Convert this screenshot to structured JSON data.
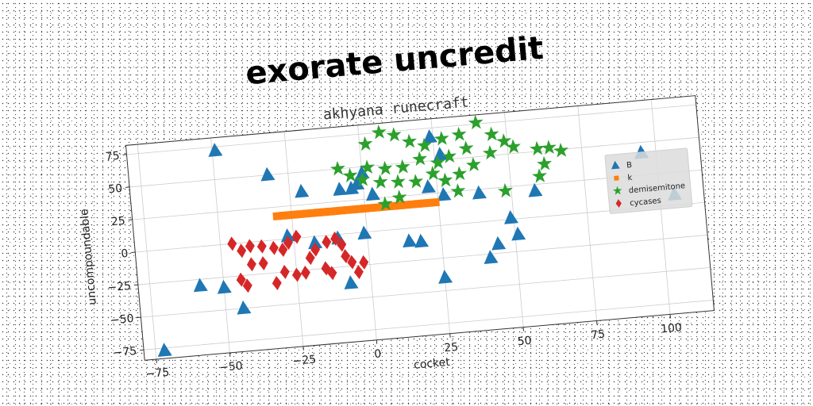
{
  "chart_data": {
    "type": "scatter",
    "title": "exorate uncredit",
    "subtitle": "akhyana runecraft",
    "xlabel": "cocket",
    "ylabel": "uncompoundable",
    "xlim": [
      -79,
      115
    ],
    "ylim": [
      -83,
      82
    ],
    "x_ticks": [
      -75,
      -50,
      -25,
      0,
      25,
      50,
      75,
      100
    ],
    "y_ticks": [
      -75,
      -50,
      -25,
      0,
      25,
      50,
      75
    ],
    "grid": true,
    "legend_position": "right",
    "series": [
      {
        "name": "B",
        "marker": "triangle",
        "color": "#1f77b4",
        "points": [
          [
            -72,
            -77
          ],
          [
            -49,
            72
          ],
          [
            -32,
            50
          ],
          [
            -21,
            35
          ],
          [
            -8,
            34
          ],
          [
            -4,
            34
          ],
          [
            3,
            28
          ],
          [
            24,
            68
          ],
          [
            27,
            54
          ],
          [
            22,
            30
          ],
          [
            39,
            22
          ],
          [
            58,
            20
          ],
          [
            95,
            42
          ],
          [
            105,
            8
          ],
          [
            -58,
            -30
          ],
          [
            -50,
            -33
          ],
          [
            -44,
            -50
          ],
          [
            -27,
            2
          ],
          [
            -18,
            -5
          ],
          [
            -1,
            -1
          ],
          [
            14,
            -10
          ],
          [
            18,
            -11
          ],
          [
            25,
            -40
          ],
          [
            41,
            -28
          ],
          [
            44,
            -18
          ],
          [
            49,
            1
          ],
          [
            51,
            -12
          ],
          [
            -7,
            -38
          ],
          [
            0,
            45
          ],
          [
            -2,
            37
          ],
          [
            27,
            23
          ],
          [
            -10,
            -3
          ]
        ]
      },
      {
        "name": "k",
        "marker": "square",
        "color": "#ff7f0e",
        "points": [
          [
            -30,
            18
          ],
          [
            -28,
            18
          ],
          [
            -26,
            18
          ],
          [
            -24,
            18
          ],
          [
            -22,
            18
          ],
          [
            -20,
            18
          ],
          [
            -18,
            18
          ],
          [
            -16,
            18
          ],
          [
            -14,
            18
          ],
          [
            -12,
            18
          ],
          [
            -10,
            18
          ],
          [
            -8,
            18
          ],
          [
            -6,
            18
          ],
          [
            -4,
            18
          ],
          [
            -2,
            18
          ],
          [
            0,
            18
          ],
          [
            2,
            18
          ],
          [
            4,
            18
          ],
          [
            6,
            18
          ],
          [
            8,
            18
          ],
          [
            10,
            18
          ],
          [
            12,
            18
          ],
          [
            14,
            18
          ],
          [
            16,
            18
          ],
          [
            18,
            18
          ],
          [
            20,
            18
          ],
          [
            22,
            18
          ],
          [
            24,
            18
          ]
        ]
      },
      {
        "name": "demisemitone",
        "marker": "star",
        "color": "#2ca02c",
        "points": [
          [
            7,
            75
          ],
          [
            12,
            72
          ],
          [
            2,
            67
          ],
          [
            17,
            66
          ],
          [
            22,
            62
          ],
          [
            28,
            66
          ],
          [
            34,
            68
          ],
          [
            40,
            76
          ],
          [
            45,
            66
          ],
          [
            49,
            60
          ],
          [
            52,
            55
          ],
          [
            44,
            52
          ],
          [
            36,
            57
          ],
          [
            30,
            52
          ],
          [
            26,
            48
          ],
          [
            20,
            52
          ],
          [
            14,
            47
          ],
          [
            8,
            47
          ],
          [
            2,
            49
          ],
          [
            -4,
            44
          ],
          [
            0,
            40
          ],
          [
            6,
            37
          ],
          [
            12,
            36
          ],
          [
            18,
            35
          ],
          [
            24,
            40
          ],
          [
            28,
            34
          ],
          [
            33,
            38
          ],
          [
            38,
            44
          ],
          [
            32,
            25
          ],
          [
            48,
            22
          ],
          [
            60,
            31
          ],
          [
            62,
            40
          ],
          [
            64,
            52
          ],
          [
            68,
            49
          ],
          [
            60,
            52
          ],
          [
            7,
            20
          ],
          [
            12,
            24
          ],
          [
            -8,
            50
          ]
        ]
      },
      {
        "name": "cycases",
        "marker": "diamond",
        "color": "#d62728",
        "points": [
          [
            -46,
            0
          ],
          [
            -43,
            -6
          ],
          [
            -40,
            -3
          ],
          [
            -36,
            -4
          ],
          [
            -32,
            -6
          ],
          [
            -29,
            -8
          ],
          [
            -27,
            -3
          ],
          [
            -24,
            1
          ],
          [
            -40,
            -17
          ],
          [
            -36,
            -17
          ],
          [
            -29,
            -25
          ],
          [
            -25,
            -28
          ],
          [
            -44,
            -28
          ],
          [
            -42,
            -33
          ],
          [
            -32,
            -33
          ],
          [
            -22,
            -27
          ],
          [
            -18,
            -10
          ],
          [
            -15,
            -25
          ],
          [
            -13,
            -29
          ],
          [
            -11,
            -3
          ],
          [
            -9,
            -8
          ],
          [
            -8,
            -17
          ],
          [
            -6,
            -22
          ],
          [
            -4,
            -30
          ],
          [
            -2,
            -23
          ],
          [
            -14,
            -5
          ],
          [
            -20,
            -16
          ]
        ]
      }
    ]
  }
}
